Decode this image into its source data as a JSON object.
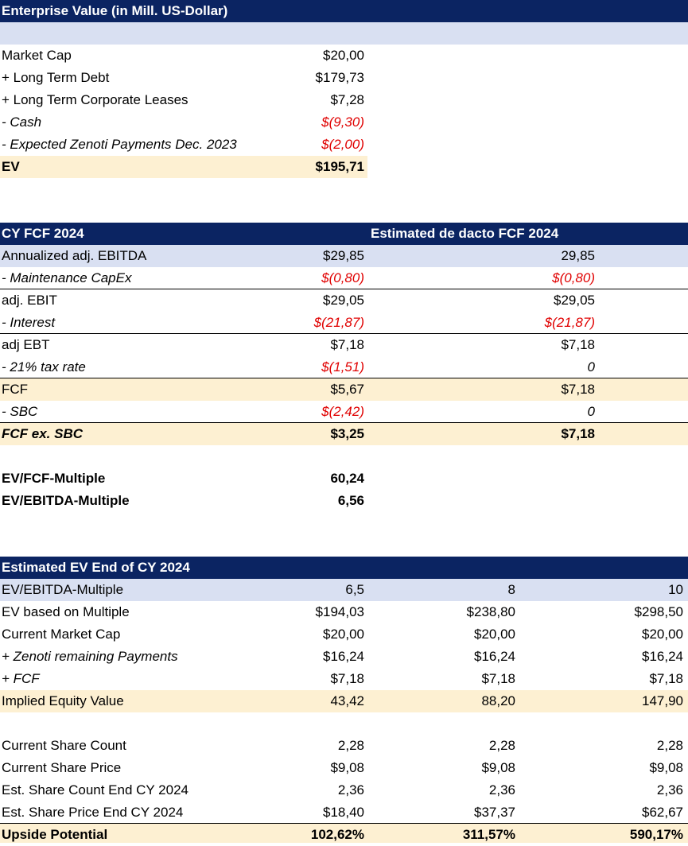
{
  "ev": {
    "title": "Enterprise Value (in Mill. US-Dollar)",
    "rows": [
      {
        "label": "Market Cap",
        "value": "$20,00"
      },
      {
        "label": "+ Long Term Debt",
        "value": "$179,73"
      },
      {
        "label": "+ Long Term Corporate Leases",
        "value": "$7,28"
      },
      {
        "label": "- Cash",
        "value": "$(9,30)"
      },
      {
        "label": "- Expected Zenoti Payments Dec. 2023",
        "value": "$(2,00)"
      }
    ],
    "total_label": "EV",
    "total_value": "$195,71"
  },
  "fcf": {
    "title": "CY FCF 2024",
    "title2": "Estimated de dacto FCF 2024",
    "rows": [
      {
        "label": "Annualized adj. EBITDA",
        "v1": "$29,85",
        "v2": "29,85"
      },
      {
        "label": "- Maintenance CapEx",
        "v1": "$(0,80)",
        "v2": "$(0,80)"
      },
      {
        "label": "adj. EBIT",
        "v1": "$29,05",
        "v2": "$29,05"
      },
      {
        "label": "- Interest",
        "v1": "$(21,87)",
        "v2": "$(21,87)"
      },
      {
        "label": "adj EBT",
        "v1": "$7,18",
        "v2": "$7,18"
      },
      {
        "label": "- 21% tax rate",
        "v1": "$(1,51)",
        "v2": "0"
      },
      {
        "label": "FCF",
        "v1": "$5,67",
        "v2": "$7,18"
      },
      {
        "label": "- SBC",
        "v1": "$(2,42)",
        "v2": "0"
      },
      {
        "label": "FCF ex. SBC",
        "v1": "$3,25",
        "v2": "$7,18"
      }
    ]
  },
  "multiples": [
    {
      "label": "EV/FCF-Multiple",
      "value": "60,24"
    },
    {
      "label": "EV/EBITDA-Multiple",
      "value": "6,56"
    }
  ],
  "est": {
    "title": "Estimated EV End of CY 2024",
    "rows": [
      {
        "label": "EV/EBITDA-Multiple",
        "v1": "6,5",
        "v2": "8",
        "v3": "10"
      },
      {
        "label": "EV based on Multiple",
        "v1": "$194,03",
        "v2": "$238,80",
        "v3": "$298,50"
      },
      {
        "label": "Current Market Cap",
        "v1": "$20,00",
        "v2": "$20,00",
        "v3": "$20,00"
      },
      {
        "label": "+ Zenoti remaining Payments",
        "v1": "$16,24",
        "v2": "$16,24",
        "v3": "$16,24"
      },
      {
        "label": "+ FCF",
        "v1": "$7,18",
        "v2": "$7,18",
        "v3": "$7,18"
      },
      {
        "label": "Implied Equity Value",
        "v1": "43,42",
        "v2": "88,20",
        "v3": "147,90"
      },
      {
        "label": "Current Share Count",
        "v1": "2,28",
        "v2": "2,28",
        "v3": "2,28"
      },
      {
        "label": "Current Share Price",
        "v1": "$9,08",
        "v2": "$9,08",
        "v3": "$9,08"
      },
      {
        "label": "Est. Share Count End CY 2024",
        "v1": "2,36",
        "v2": "2,36",
        "v3": "2,36"
      },
      {
        "label": "Est. Share Price End CY 2024",
        "v1": "$18,40",
        "v2": "$37,37",
        "v3": "$62,67"
      },
      {
        "label": "Upside Potential",
        "v1": "102,62%",
        "v2": "311,57%",
        "v3": "590,17%"
      }
    ]
  },
  "colors": {
    "header": "#0b2462",
    "band": "#d9e0f2",
    "total": "#fdf0d2",
    "negative": "#e00000"
  }
}
